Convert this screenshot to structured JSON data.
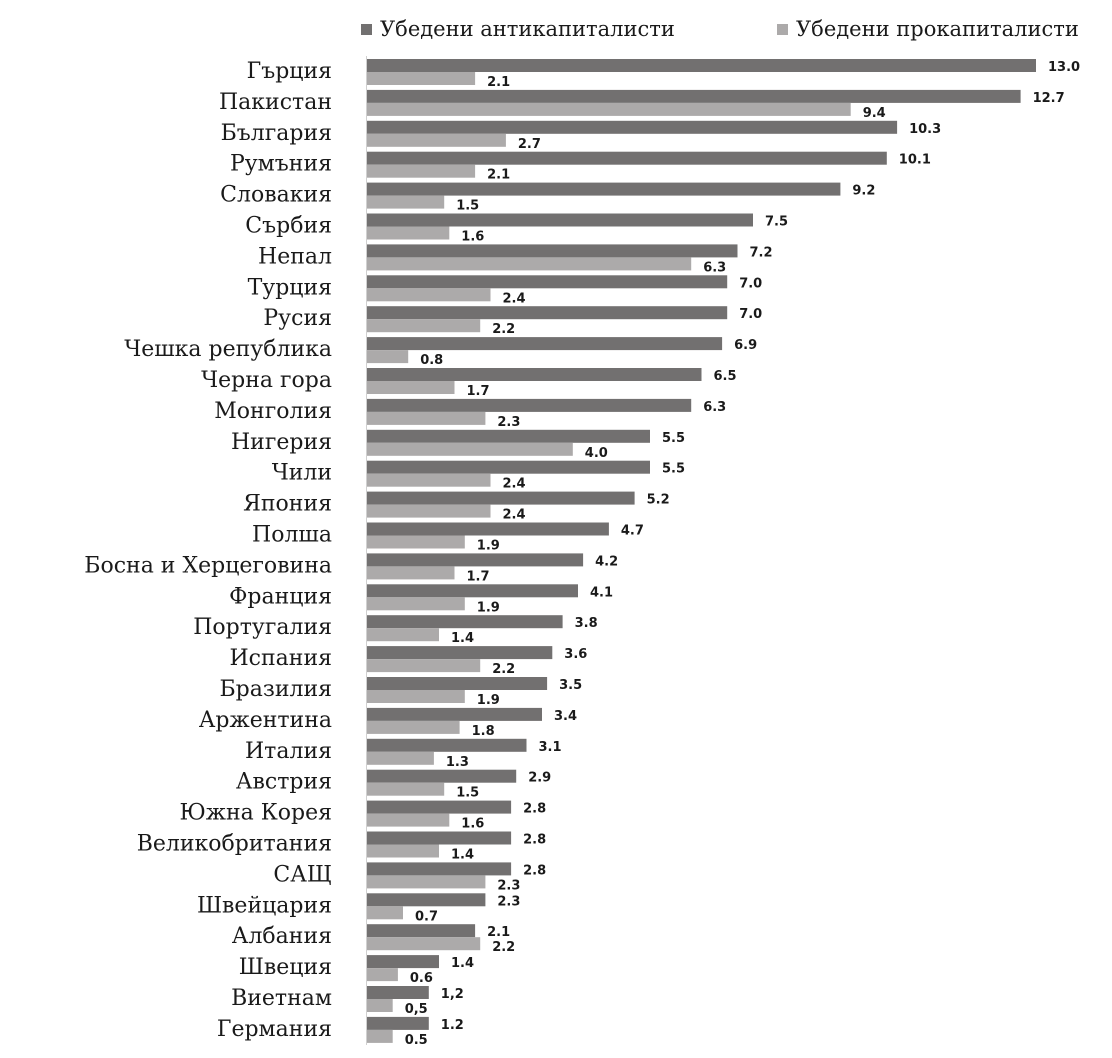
{
  "chart_data": {
    "type": "bar",
    "orientation": "horizontal",
    "legend_position": "top",
    "grid": false,
    "xlim": [
      0,
      13.0
    ],
    "categories": [
      "Гърция",
      "Пакистан",
      "България",
      "Румъния",
      "Словакия",
      "Сърбия",
      "Непал",
      "Турция",
      "Русия",
      "Чешка република",
      "Черна гора",
      "Монголия",
      "Нигерия",
      "Чили",
      "Япония",
      "Полша",
      "Босна и Херцеговина",
      "Франция",
      "Португалия",
      "Испания",
      "Бразилия",
      "Аржентина",
      "Италия",
      "Австрия",
      "Южна Корея",
      "Великобритания",
      "САЩ",
      "Швейцария",
      "Албания",
      "Швеция",
      "Виетнам",
      "Германия"
    ],
    "series": [
      {
        "name": "Убедени антикапиталисти",
        "color": "#727070",
        "values": [
          13.0,
          12.7,
          10.3,
          10.1,
          9.2,
          7.5,
          7.2,
          7.0,
          7.0,
          6.9,
          6.5,
          6.3,
          5.5,
          5.5,
          5.2,
          4.7,
          4.2,
          4.1,
          3.8,
          3.6,
          3.5,
          3.4,
          3.1,
          2.9,
          2.8,
          2.8,
          2.8,
          2.3,
          2.1,
          1.4,
          1.2,
          1.2
        ],
        "labels": [
          "13.0",
          "12.7",
          "10.3",
          "10.1",
          "9.2",
          "7.5",
          "7.2",
          "7.0",
          "7.0",
          "6.9",
          "6.5",
          "6.3",
          "5.5",
          "5.5",
          "5.2",
          "4.7",
          "4.2",
          "4.1",
          "3.8",
          "3.6",
          "3.5",
          "3.4",
          "3.1",
          "2.9",
          "2.8",
          "2.8",
          "2.8",
          "2.3",
          "2.1",
          "1.4",
          "1,2",
          "1.2"
        ]
      },
      {
        "name": "Убедени прокапиталисти",
        "color": "#acaaaa",
        "values": [
          2.1,
          9.4,
          2.7,
          2.1,
          1.5,
          1.6,
          6.3,
          2.4,
          2.2,
          0.8,
          1.7,
          2.3,
          4.0,
          2.4,
          2.4,
          1.9,
          1.7,
          1.9,
          1.4,
          2.2,
          1.9,
          1.8,
          1.3,
          1.5,
          1.6,
          1.4,
          2.3,
          0.7,
          2.2,
          0.6,
          0.5,
          0.5
        ],
        "labels": [
          "2.1",
          "9.4",
          "2.7",
          "2.1",
          "1.5",
          "1.6",
          "6.3",
          "2.4",
          "2.2",
          "0.8",
          "1.7",
          "2.3",
          "4.0",
          "2.4",
          "2.4",
          "1.9",
          "1.7",
          "1.9",
          "1.4",
          "2.2",
          "1.9",
          "1.8",
          "1.3",
          "1.5",
          "1.6",
          "1.4",
          "2.3",
          "0.7",
          "2.2",
          "0.6",
          "0,5",
          "0.5"
        ]
      }
    ]
  }
}
